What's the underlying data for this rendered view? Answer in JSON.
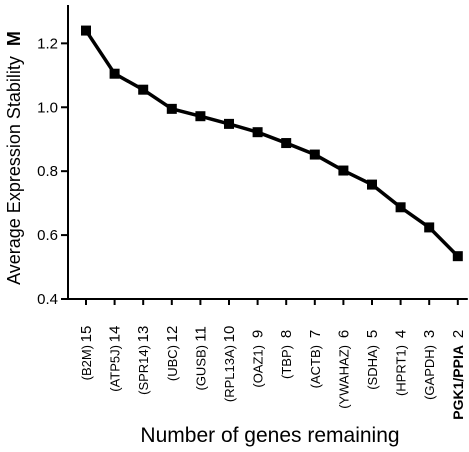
{
  "chart_data": {
    "type": "line",
    "ylabel": "Average Expression Stability",
    "ylabel_symbol": "M",
    "xlabel": "Number of genes remaining",
    "ylim": [
      0.4,
      1.32
    ],
    "yticks": [
      "0.4",
      "0.6",
      "0.8",
      "1.0",
      "1.2"
    ],
    "color": "#000000",
    "categories": [
      {
        "num": "15",
        "gene": "(B2M)",
        "bold": false
      },
      {
        "num": "14",
        "gene": "(ATP5J)",
        "bold": false
      },
      {
        "num": "13",
        "gene": "(SPR14)",
        "bold": false
      },
      {
        "num": "12",
        "gene": "(UBC)",
        "bold": false
      },
      {
        "num": "11",
        "gene": "(GUSB)",
        "bold": false
      },
      {
        "num": "10",
        "gene": "(RPL13A)",
        "bold": false
      },
      {
        "num": "9",
        "gene": "(OAZ1)",
        "bold": false
      },
      {
        "num": "8",
        "gene": "(TBP)",
        "bold": false
      },
      {
        "num": "7",
        "gene": "(ACTB)",
        "bold": false
      },
      {
        "num": "6",
        "gene": "(YWAHAZ)",
        "bold": false
      },
      {
        "num": "5",
        "gene": "(SDHA)",
        "bold": false
      },
      {
        "num": "4",
        "gene": "(HPRT1)",
        "bold": false
      },
      {
        "num": "3",
        "gene": "(GAPDH)",
        "bold": false
      },
      {
        "num": "2",
        "gene": "PGK1/PPIA",
        "bold": true
      }
    ],
    "values": [
      1.24,
      1.105,
      1.055,
      0.995,
      0.972,
      0.948,
      0.922,
      0.888,
      0.852,
      0.802,
      0.758,
      0.687,
      0.624,
      0.534
    ]
  }
}
